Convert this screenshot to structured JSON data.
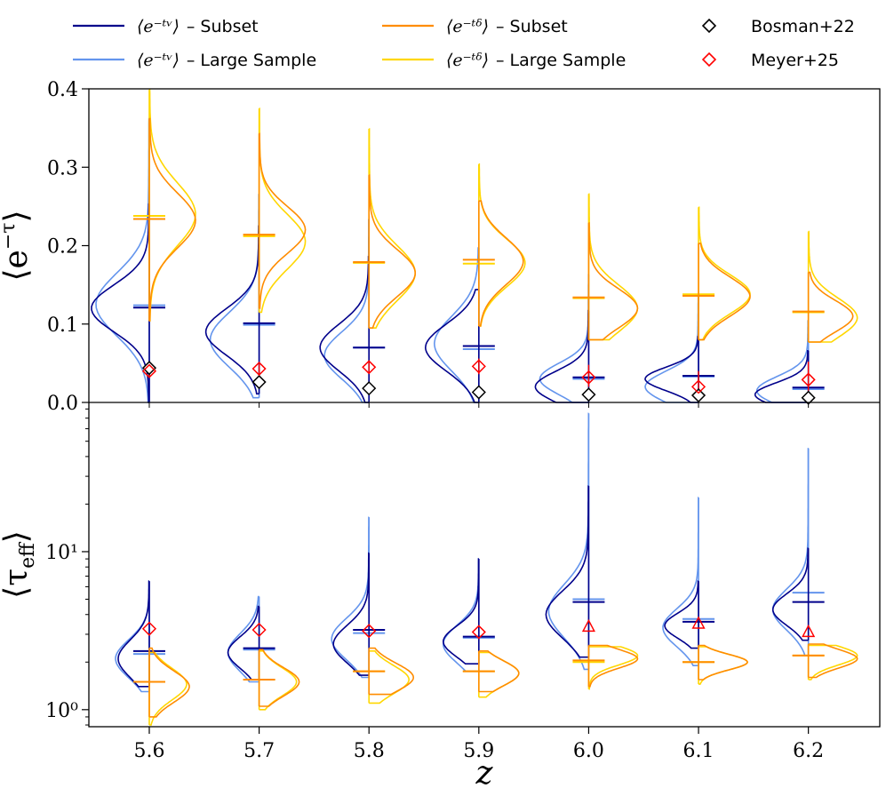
{
  "chart_data": {
    "type": "violin",
    "xlabel": "z",
    "x": [
      5.6,
      5.7,
      5.8,
      5.9,
      6.0,
      6.1,
      6.2
    ],
    "x_tick_labels": [
      "5.6",
      "5.7",
      "5.8",
      "5.9",
      "6.0",
      "6.1",
      "6.2"
    ],
    "legend": {
      "placement": "top",
      "entries": [
        {
          "id": "nu_subset",
          "math": "⟨e^{−τ_ν}⟩",
          "label": "– Subset",
          "color": "#00008b",
          "marker": "line"
        },
        {
          "id": "nu_large",
          "math": "⟨e^{−τ_ν}⟩",
          "label": "– Large Sample",
          "color": "#6495ed",
          "marker": "line"
        },
        {
          "id": "delta_subset",
          "math": "⟨e^{−τ_δ}⟩",
          "label": "– Subset",
          "color": "#ff8c00",
          "marker": "line"
        },
        {
          "id": "delta_large",
          "math": "⟨e^{−τ_δ}⟩",
          "label": "– Large Sample",
          "color": "#ffd700",
          "marker": "line"
        },
        {
          "id": "bosman",
          "label": "Bosman+22",
          "color": "#000000",
          "marker": "diamond"
        },
        {
          "id": "meyer",
          "label": "Meyer+25",
          "color": "#ff0000",
          "marker": "diamond"
        }
      ]
    },
    "panels": [
      {
        "id": "top",
        "ylabel": "⟨e^{−τ}⟩",
        "yscale": "linear",
        "ylim": [
          0.0,
          0.4
        ],
        "yticks": [
          0.0,
          0.1,
          0.2,
          0.3,
          0.4
        ],
        "ytick_labels": [
          "0.0",
          "0.1",
          "0.2",
          "0.3",
          "0.4"
        ],
        "series": {
          "nu_subset": {
            "side": "left",
            "median": [
              0.121,
              0.101,
              0.07,
              0.072,
              0.032,
              0.034,
              0.019
            ],
            "low": [
              0.0,
              0.011,
              0.0,
              0.0,
              0.0,
              0.0,
              0.0
            ],
            "high": [
              0.253,
              0.225,
              0.186,
              0.144,
              0.117,
              0.084,
              0.066
            ],
            "mode": [
              0.12,
              0.09,
              0.07,
              0.07,
              0.02,
              0.03,
              0.01
            ],
            "spread": [
              0.03,
              0.03,
              0.03,
              0.03,
              0.02,
              0.015,
              0.015
            ],
            "amp": [
              65,
              60,
              55,
              60,
              60,
              60,
              60
            ]
          },
          "nu_large": {
            "side": "left",
            "median": [
              0.124,
              0.099,
              0.07,
              0.068,
              0.03,
              0.033,
              0.017
            ],
            "low": [
              0.0,
              0.006,
              0.0,
              0.0,
              0.0,
              0.0,
              0.0
            ],
            "high": [
              0.362,
              0.265,
              0.233,
              0.197,
              0.163,
              0.137,
              0.104
            ],
            "mode": [
              0.125,
              0.08,
              0.06,
              0.075,
              0.03,
              0.02,
              0.015
            ],
            "spread": [
              0.04,
              0.035,
              0.03,
              0.035,
              0.02,
              0.02,
              0.018
            ],
            "amp": [
              60,
              55,
              50,
              50,
              55,
              60,
              58
            ]
          },
          "delta_subset": {
            "side": "right",
            "median": [
              0.234,
              0.214,
              0.179,
              0.182,
              0.134,
              0.136,
              0.116
            ],
            "low": [
              0.104,
              0.12,
              0.095,
              0.0975,
              0.08,
              0.08,
              0.077
            ],
            "high": [
              0.362,
              0.343,
              0.29,
              0.257,
              0.229,
              0.203,
              0.166
            ],
            "mode": [
              0.232,
              0.22,
              0.165,
              0.18,
              0.12,
              0.135,
              0.11
            ],
            "spread": [
              0.035,
              0.03,
              0.03,
              0.03,
              0.025,
              0.025,
              0.02
            ],
            "amp": [
              52,
              52,
              52,
              50,
              55,
              58,
              50
            ]
          },
          "delta_large": {
            "side": "right",
            "median": [
              0.238,
              0.212,
              0.178,
              0.177,
              0.133,
              0.138,
              0.115
            ],
            "low": [
              0.104,
              0.115,
              0.095,
              0.0975,
              0.08,
              0.08,
              0.077
            ],
            "high": [
              0.399,
              0.375,
              0.349,
              0.304,
              0.266,
              0.249,
              0.218
            ],
            "mode": [
              0.24,
              0.205,
              0.165,
              0.178,
              0.12,
              0.138,
              0.108
            ],
            "spread": [
              0.04,
              0.035,
              0.035,
              0.03,
              0.03,
              0.025,
              0.025
            ],
            "amp": [
              52,
              52,
              52,
              52,
              55,
              58,
              55
            ]
          }
        },
        "markers": {
          "bosman": [
            0.044,
            0.026,
            0.018,
            0.013,
            0.01,
            0.009,
            0.006
          ],
          "meyer": [
            0.04,
            0.043,
            0.045,
            0.046,
            0.032,
            0.02,
            0.029
          ],
          "meyer_err": [
            [
              0.034,
              0.047
            ],
            [
              0.036,
              0.049
            ],
            [
              0.037,
              0.053
            ],
            [
              0.036,
              0.056
            ],
            [
              0.02,
              0.048
            ],
            [
              0.01,
              0.04
            ],
            [
              0.015,
              0.052
            ]
          ]
        }
      },
      {
        "id": "bottom",
        "ylabel": "⟨τ_eff⟩",
        "yscale": "log",
        "ylim": [
          0.78,
          88
        ],
        "yticks": [
          1,
          10
        ],
        "ytick_labels": [
          "10⁰",
          "10¹"
        ],
        "series": {
          "nu_subset": {
            "side": "left",
            "median": [
              2.35,
              2.45,
              3.2,
              2.9,
              4.8,
              3.6,
              4.8
            ],
            "low": [
              1.4,
              1.55,
              1.65,
              1.95,
              2.15,
              2.45,
              2.75
            ],
            "high": [
              6.5,
              4.5,
              9.8,
              9.0,
              26.0,
              6.5,
              10.5
            ],
            "mode": [
              2.1,
              2.3,
              2.6,
              2.7,
              4.0,
              3.4,
              4.3
            ],
            "spread": [
              0.12,
              0.1,
              0.12,
              0.1,
              0.15,
              0.08,
              0.1
            ],
            "amp": [
              35,
              35,
              40,
              40,
              48,
              38,
              40
            ]
          },
          "nu_large": {
            "side": "left",
            "median": [
              2.25,
              2.4,
              3.05,
              2.85,
              5.0,
              3.75,
              5.5
            ],
            "low": [
              1.3,
              1.5,
              1.6,
              1.75,
              1.8,
              1.9,
              2.2
            ],
            "high": [
              6.5,
              5.2,
              16.5,
              9.0,
              75.0,
              22.0,
              45.0
            ],
            "mode": [
              2.1,
              2.3,
              2.8,
              2.6,
              4.2,
              3.3,
              4.3
            ],
            "spread": [
              0.12,
              0.12,
              0.13,
              0.12,
              0.17,
              0.12,
              0.13
            ],
            "amp": [
              38,
              35,
              42,
              40,
              45,
              40,
              40
            ]
          },
          "delta_subset": {
            "side": "right",
            "median": [
              1.5,
              1.55,
              1.75,
              1.75,
              2.05,
              2.0,
              2.2
            ],
            "low": [
              0.9,
              1.05,
              1.25,
              1.3,
              1.4,
              1.55,
              1.6
            ],
            "high": [
              2.45,
              2.4,
              2.45,
              2.35,
              2.55,
              2.55,
              2.6
            ],
            "mode": [
              1.4,
              1.5,
              1.6,
              1.7,
              2.1,
              2.0,
              2.1
            ],
            "spread": [
              0.1,
              0.09,
              0.09,
              0.08,
              0.06,
              0.05,
              0.06
            ],
            "amp": [
              45,
              45,
              50,
              45,
              55,
              55,
              55
            ]
          },
          "delta_large": {
            "side": "right",
            "median": [
              1.5,
              1.55,
              1.75,
              1.75,
              2.0,
              2.0,
              2.2
            ],
            "low": [
              0.8,
              1.0,
              1.1,
              1.2,
              1.35,
              1.45,
              1.55
            ],
            "high": [
              2.3,
              2.35,
              2.35,
              2.3,
              2.5,
              2.5,
              2.55
            ],
            "mode": [
              1.45,
              1.5,
              1.55,
              1.7,
              2.2,
              2.0,
              2.2
            ],
            "spread": [
              0.1,
              0.09,
              0.09,
              0.08,
              0.06,
              0.05,
              0.06
            ],
            "amp": [
              42,
              42,
              45,
              45,
              55,
              55,
              55
            ]
          }
        },
        "markers": {
          "meyer": [
            3.25,
            3.2,
            3.15,
            3.1,
            3.35,
            3.5,
            3.1
          ],
          "meyer_marker": [
            "diamond",
            "diamond",
            "diamond",
            "diamond",
            "triangle",
            "triangle",
            "triangle"
          ]
        }
      }
    ]
  }
}
